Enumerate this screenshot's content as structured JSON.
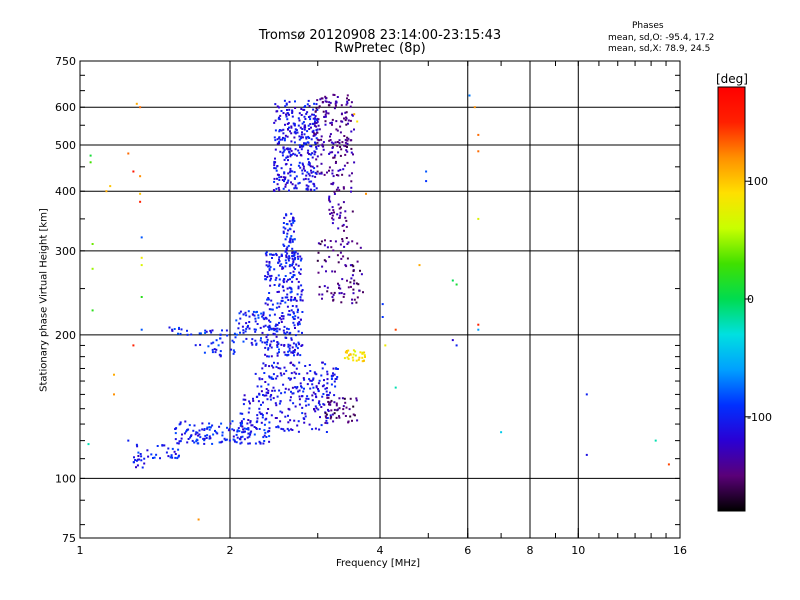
{
  "chart_data": {
    "type": "scatter",
    "title": "Tromsø 20120908 23:14:00-23:15:43",
    "subtitle": "RwPretec (8p)",
    "xlabel": "Frequency [MHz]",
    "ylabel": "Stationary phase Virtual Height [km]",
    "x_scale": "log",
    "y_scale": "log",
    "xlim": [
      1,
      16
    ],
    "ylim": [
      75,
      750
    ],
    "x_ticks": [
      "1",
      "2",
      "4",
      "6",
      "8",
      "10",
      "16"
    ],
    "x_tick_values": [
      1,
      2,
      4,
      6,
      8,
      10,
      16
    ],
    "x_grid": [
      2,
      4,
      6,
      8,
      10
    ],
    "y_ticks": [
      "75",
      "100",
      "200",
      "300",
      "400",
      "500",
      "600",
      "750"
    ],
    "y_tick_values": [
      75,
      100,
      200,
      300,
      400,
      500,
      600,
      750
    ],
    "grid": true,
    "phases_header": "Phases",
    "phases_o": "mean, sd,O: -95.4, 17.2",
    "phases_x": "mean, sd,X:  78.9, 24.5",
    "colorbar": {
      "unit": "[deg]",
      "range": [
        -180,
        180
      ],
      "ticks": [
        "100",
        "0",
        "-100"
      ],
      "tick_values": [
        100,
        0,
        -100
      ],
      "colors": [
        "#000000",
        "#5a0078",
        "#2a00d4",
        "#0030ff",
        "#00a0ff",
        "#00e0e0",
        "#00dc50",
        "#40e000",
        "#c8ff00",
        "#ffe000",
        "#ff9000",
        "#ff2000",
        "#ff0000"
      ]
    },
    "clusters": [
      {
        "x": [
          2.45,
          3.0
        ],
        "y": [
          400,
          620
        ],
        "n": 320,
        "phase": -110
      },
      {
        "x": [
          2.95,
          3.55
        ],
        "y": [
          430,
          640
        ],
        "n": 170,
        "phase": -140
      },
      {
        "x": [
          2.35,
          2.8
        ],
        "y": [
          180,
          300
        ],
        "n": 300,
        "phase": -105
      },
      {
        "x": [
          2.55,
          2.7
        ],
        "y": [
          280,
          360
        ],
        "n": 60,
        "phase": -100
      },
      {
        "x": [
          2.05,
          2.35
        ],
        "y": [
          190,
          225
        ],
        "n": 60,
        "phase": -100
      },
      {
        "x": [
          1.7,
          2.05
        ],
        "y": [
          180,
          205
        ],
        "n": 40,
        "phase": -95
      },
      {
        "x": [
          1.5,
          1.7
        ],
        "y": [
          200,
          210
        ],
        "n": 12,
        "phase": -100
      },
      {
        "x": [
          3.0,
          3.7
        ],
        "y": [
          230,
          320
        ],
        "n": 90,
        "phase": -145
      },
      {
        "x": [
          3.15,
          3.55
        ],
        "y": [
          330,
          420
        ],
        "n": 45,
        "phase": -140
      },
      {
        "x": [
          2.25,
          3.3
        ],
        "y": [
          148,
          175
        ],
        "n": 150,
        "phase": -110
      },
      {
        "x": [
          1.55,
          2.4
        ],
        "y": [
          118,
          132
        ],
        "n": 150,
        "phase": -100
      },
      {
        "x": [
          2.1,
          3.2
        ],
        "y": [
          125,
          150
        ],
        "n": 130,
        "phase": -110
      },
      {
        "x": [
          1.3,
          1.6
        ],
        "y": [
          110,
          118
        ],
        "n": 30,
        "phase": -100
      },
      {
        "x": [
          1.28,
          1.35
        ],
        "y": [
          105,
          112
        ],
        "n": 15,
        "phase": -110
      },
      {
        "x": [
          3.1,
          3.6
        ],
        "y": [
          130,
          148
        ],
        "n": 50,
        "phase": -150
      },
      {
        "x": [
          3.4,
          3.75
        ],
        "y": [
          176,
          186
        ],
        "n": 30,
        "phase": 85
      }
    ],
    "points": [
      {
        "x": 1.05,
        "y": 475,
        "phase": 10
      },
      {
        "x": 1.05,
        "y": 460,
        "phase": 30
      },
      {
        "x": 1.06,
        "y": 310,
        "phase": 40
      },
      {
        "x": 1.06,
        "y": 275,
        "phase": 50
      },
      {
        "x": 1.06,
        "y": 225,
        "phase": 20
      },
      {
        "x": 1.04,
        "y": 118,
        "phase": -20
      },
      {
        "x": 1.15,
        "y": 410,
        "phase": 100
      },
      {
        "x": 1.13,
        "y": 400,
        "phase": 110
      },
      {
        "x": 1.17,
        "y": 165,
        "phase": 110
      },
      {
        "x": 1.17,
        "y": 150,
        "phase": 120
      },
      {
        "x": 1.25,
        "y": 480,
        "phase": 130
      },
      {
        "x": 1.25,
        "y": 120,
        "phase": -100
      },
      {
        "x": 1.3,
        "y": 610,
        "phase": 110
      },
      {
        "x": 1.32,
        "y": 600,
        "phase": 130
      },
      {
        "x": 1.28,
        "y": 440,
        "phase": 160
      },
      {
        "x": 1.32,
        "y": 430,
        "phase": 120
      },
      {
        "x": 1.32,
        "y": 395,
        "phase": 100
      },
      {
        "x": 1.32,
        "y": 380,
        "phase": 150
      },
      {
        "x": 1.33,
        "y": 320,
        "phase": -80
      },
      {
        "x": 1.33,
        "y": 290,
        "phase": 80
      },
      {
        "x": 1.33,
        "y": 280,
        "phase": 70
      },
      {
        "x": 1.33,
        "y": 240,
        "phase": 20
      },
      {
        "x": 1.33,
        "y": 205,
        "phase": -80
      },
      {
        "x": 1.28,
        "y": 190,
        "phase": 150
      },
      {
        "x": 1.73,
        "y": 82,
        "phase": 120
      },
      {
        "x": 3.55,
        "y": 580,
        "phase": 110
      },
      {
        "x": 3.6,
        "y": 560,
        "phase": 90
      },
      {
        "x": 3.75,
        "y": 395,
        "phase": 120
      },
      {
        "x": 4.05,
        "y": 232,
        "phase": -90
      },
      {
        "x": 4.05,
        "y": 218,
        "phase": -90
      },
      {
        "x": 4.1,
        "y": 190,
        "phase": 80
      },
      {
        "x": 4.3,
        "y": 205,
        "phase": 140
      },
      {
        "x": 4.3,
        "y": 155,
        "phase": -20
      },
      {
        "x": 4.95,
        "y": 440,
        "phase": -80
      },
      {
        "x": 4.95,
        "y": 420,
        "phase": -90
      },
      {
        "x": 4.8,
        "y": 280,
        "phase": 110
      },
      {
        "x": 5.6,
        "y": 260,
        "phase": 0
      },
      {
        "x": 5.7,
        "y": 255,
        "phase": 10
      },
      {
        "x": 5.6,
        "y": 195,
        "phase": -120
      },
      {
        "x": 5.7,
        "y": 190,
        "phase": -100
      },
      {
        "x": 6.05,
        "y": 635,
        "phase": -70
      },
      {
        "x": 6.2,
        "y": 600,
        "phase": 120
      },
      {
        "x": 6.3,
        "y": 525,
        "phase": 130
      },
      {
        "x": 6.3,
        "y": 485,
        "phase": 130
      },
      {
        "x": 6.3,
        "y": 350,
        "phase": 70
      },
      {
        "x": 6.3,
        "y": 210,
        "phase": 150
      },
      {
        "x": 6.3,
        "y": 205,
        "phase": -60
      },
      {
        "x": 7.0,
        "y": 125,
        "phase": -40
      },
      {
        "x": 10.4,
        "y": 150,
        "phase": -100
      },
      {
        "x": 10.4,
        "y": 112,
        "phase": -110
      },
      {
        "x": 14.3,
        "y": 120,
        "phase": -20
      },
      {
        "x": 15.2,
        "y": 107,
        "phase": 140
      }
    ]
  }
}
